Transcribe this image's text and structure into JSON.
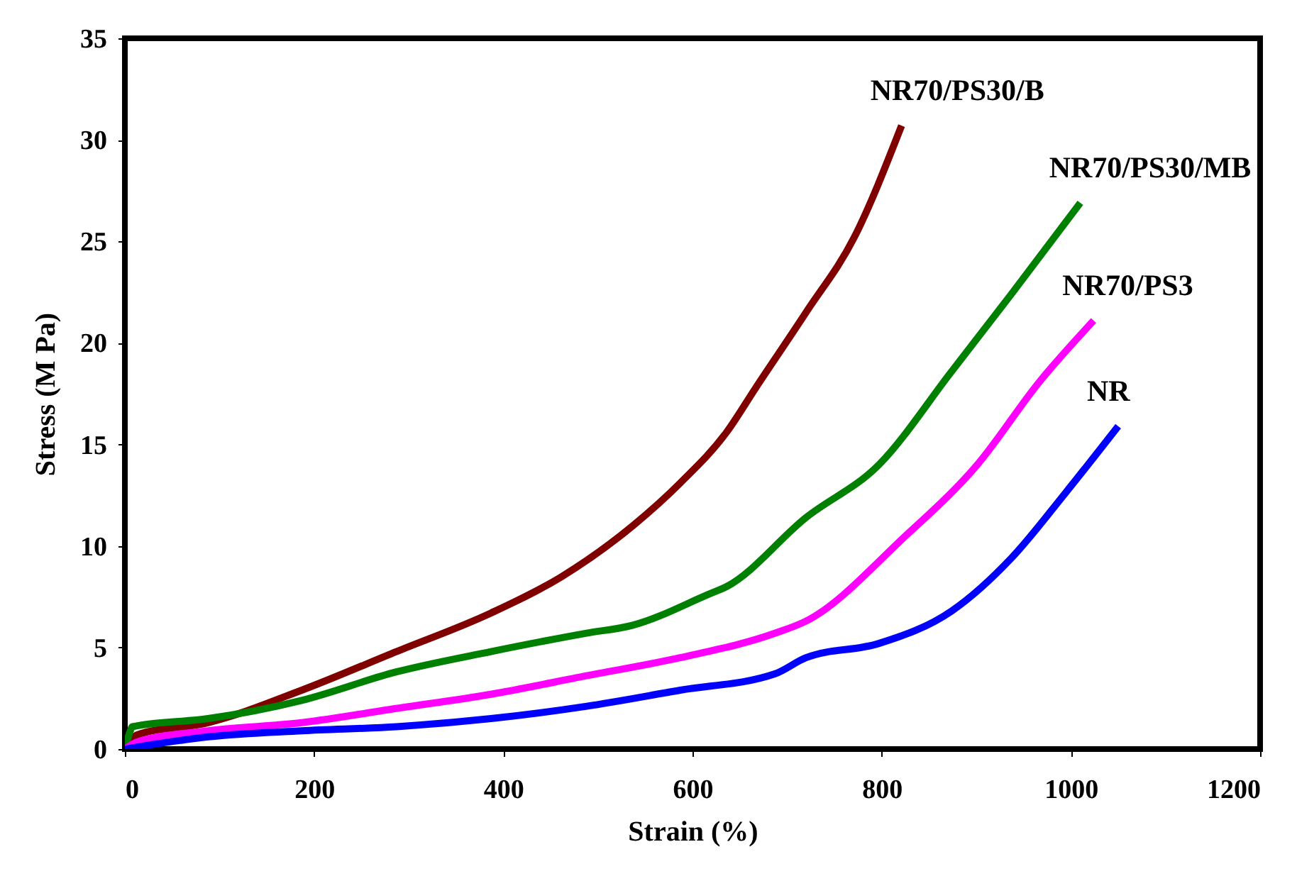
{
  "chart_data": {
    "type": "line",
    "xlabel": "Strain (%)",
    "ylabel": "Stress (M Pa)",
    "xlim": [
      0,
      1200
    ],
    "xticks": [
      0,
      200,
      400,
      600,
      800,
      1000,
      1200
    ],
    "ylim": [
      0,
      35
    ],
    "yticks": [
      0,
      5,
      10,
      15,
      20,
      25,
      30,
      35
    ],
    "grid": false,
    "legend": false,
    "marker": "none",
    "line_style": "solid",
    "series": [
      {
        "name": "NR70/PS30/B",
        "color": "#800000",
        "x": [
          0,
          13,
          88,
          187,
          287,
          387,
          462,
          537,
          587,
          636,
          667,
          720,
          771,
          821
        ],
        "values": [
          0,
          0.7,
          1.3,
          2.9,
          4.8,
          6.7,
          8.5,
          11.0,
          13.1,
          15.6,
          17.8,
          21.5,
          25.2,
          30.7
        ]
      },
      {
        "name": "NR70/PS30/MB",
        "color": "#008000",
        "x": [
          0,
          5,
          8,
          88,
          187,
          287,
          387,
          487,
          537,
          616,
          636,
          720,
          797,
          874,
          937,
          1010
        ],
        "values": [
          0,
          0.8,
          1.1,
          1.5,
          2.4,
          3.8,
          4.8,
          5.7,
          6.1,
          7.6,
          8.0,
          11.4,
          14.0,
          18.6,
          22.4,
          26.9
        ]
      },
      {
        "name": "NR70/PS3",
        "color": "#ff00ff",
        "x": [
          0,
          13,
          88,
          187,
          287,
          387,
          487,
          587,
          687,
          720,
          823,
          901,
          967,
          1024
        ],
        "values": [
          0,
          0.35,
          0.9,
          1.3,
          2.0,
          2.7,
          3.6,
          4.5,
          5.7,
          6.3,
          10.4,
          14.0,
          18.1,
          21.1
        ]
      },
      {
        "name": "NR",
        "color": "#0000ff",
        "x": [
          0,
          13,
          88,
          187,
          287,
          387,
          487,
          587,
          687,
          720,
          797,
          874,
          937,
          994,
          1050
        ],
        "values": [
          0,
          0.1,
          0.6,
          0.9,
          1.1,
          1.5,
          2.1,
          2.9,
          3.7,
          4.5,
          5.2,
          6.8,
          9.4,
          12.6,
          15.9
        ]
      }
    ]
  }
}
